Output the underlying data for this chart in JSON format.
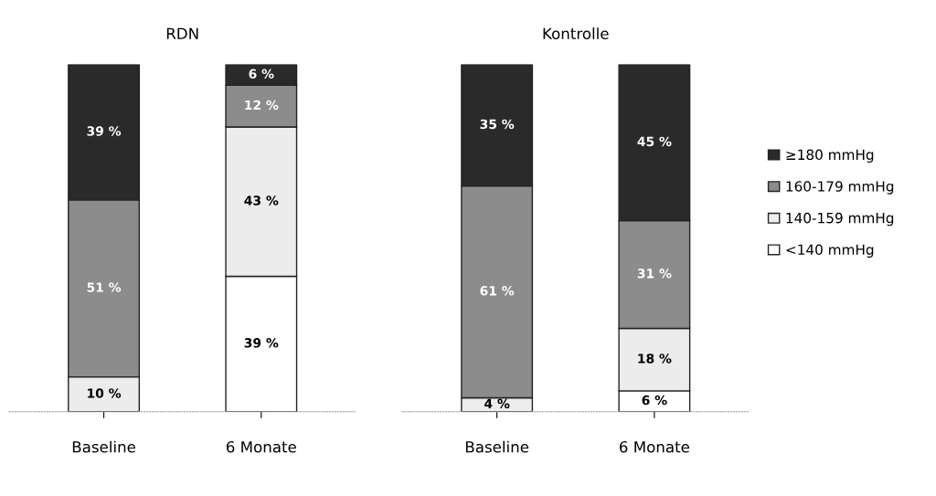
{
  "chart_data": [
    {
      "type": "bar",
      "title": "RDN",
      "categories": [
        "Baseline",
        "6 Monate"
      ],
      "stacked": true,
      "tick_labels": "x",
      "legend": false,
      "series": [
        {
          "color": "#ffffff",
          "values": [
            null,
            39
          ],
          "value_labels": [
            null,
            "39 %"
          ]
        },
        {
          "color": "#ececec",
          "values": [
            10,
            43
          ],
          "value_labels": [
            "10 %",
            "43 %"
          ]
        },
        {
          "color": "#8c8c8c",
          "values": [
            51,
            12
          ],
          "value_labels": [
            "51 %",
            "12 %"
          ]
        },
        {
          "color": "#2a2a2a",
          "values": [
            39,
            6
          ],
          "value_labels": [
            "39 %",
            "6 %"
          ]
        }
      ]
    },
    {
      "type": "bar",
      "title": "Kontrolle",
      "categories": [
        "Baseline",
        "6 Monate"
      ],
      "stacked": true,
      "tick_labels": "x",
      "legend": "right",
      "series": [
        {
          "name": "<140 mmHg",
          "color": "#ffffff",
          "values": [
            null,
            6
          ],
          "value_labels": [
            null,
            "6 %"
          ]
        },
        {
          "name": "140-159 mmHg",
          "color": "#ececec",
          "values": [
            4,
            18
          ],
          "value_labels": [
            "4 %",
            "18 %"
          ]
        },
        {
          "name": "160-179 mmHg",
          "color": "#8c8c8c",
          "values": [
            61,
            31
          ],
          "value_labels": [
            "61 %",
            "31 %"
          ]
        },
        {
          "name": "≥180 mmHg",
          "color": "#2a2a2a",
          "values": [
            35,
            45
          ],
          "value_labels": [
            "35 %",
            "45 %"
          ]
        }
      ]
    }
  ]
}
